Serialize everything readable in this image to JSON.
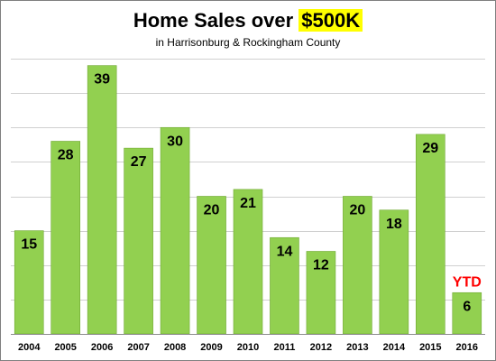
{
  "chart_data": {
    "type": "bar",
    "title_main": "Home Sales over ",
    "title_highlight": "$500K",
    "subtitle": "in Harrisonburg & Rockingham County",
    "categories": [
      "2004",
      "2005",
      "2006",
      "2007",
      "2008",
      "2009",
      "2010",
      "2011",
      "2012",
      "2013",
      "2014",
      "2015",
      "2016"
    ],
    "values": [
      15,
      28,
      39,
      27,
      30,
      20,
      21,
      14,
      12,
      20,
      18,
      29,
      6
    ],
    "annotation": {
      "category": "2016",
      "text": "YTD",
      "color": "#ff0000"
    },
    "ylim": [
      0,
      40
    ],
    "grid": true,
    "bar_color": "#92d050",
    "bar_edge_color": "#6fa832",
    "grid_color": "#d0d0d0",
    "highlight_color": "#ffff00"
  }
}
